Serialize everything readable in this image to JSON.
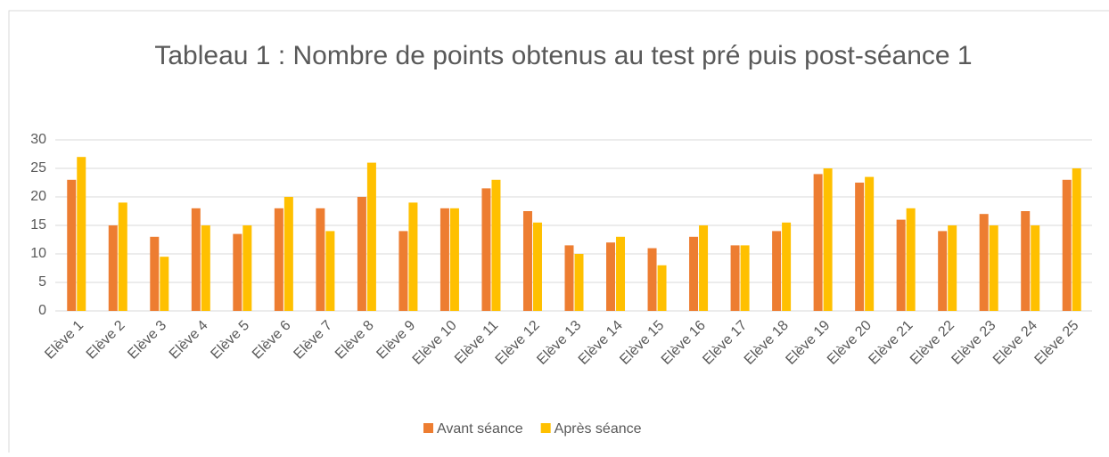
{
  "chart_data": {
    "type": "bar",
    "title": "Tableau 1 : Nombre de points obtenus au test pré puis post-séance 1",
    "categories": [
      "Elève 1",
      "Elève 2",
      "Elève 3",
      "Elève 4",
      "Elève 5",
      "Elève 6",
      "Elève 7",
      "Elève 8",
      "Elève 9",
      "Elève 10",
      "Elève 11",
      "Elève 12",
      "Elève 13",
      "Elève 14",
      "Elève 15",
      "Elève 16",
      "Elève 17",
      "Elève 18",
      "Elève 19",
      "Elève 20",
      "Elève 21",
      "Elève 22",
      "Elève 23",
      "Elève 24",
      "Elève 25"
    ],
    "series": [
      {
        "name": "Avant séance",
        "color": "#ed7d31",
        "values": [
          23,
          15,
          13,
          18,
          13.5,
          18,
          18,
          20,
          14,
          18,
          21.5,
          17.5,
          11.5,
          12,
          11,
          13,
          11.5,
          14,
          24,
          22.5,
          16,
          14,
          17,
          17.5,
          23
        ]
      },
      {
        "name": "Après séance",
        "color": "#ffc000",
        "values": [
          27,
          19,
          9.5,
          15,
          15,
          20,
          14,
          26,
          19,
          18,
          23,
          15.5,
          10,
          13,
          8,
          15,
          11.5,
          15.5,
          25,
          23.5,
          18,
          15,
          15,
          15,
          25
        ]
      }
    ],
    "ylim": [
      0,
      30
    ],
    "yticks": [
      0,
      5,
      10,
      15,
      20,
      25,
      30
    ],
    "grid": true,
    "legend": "bottom"
  }
}
